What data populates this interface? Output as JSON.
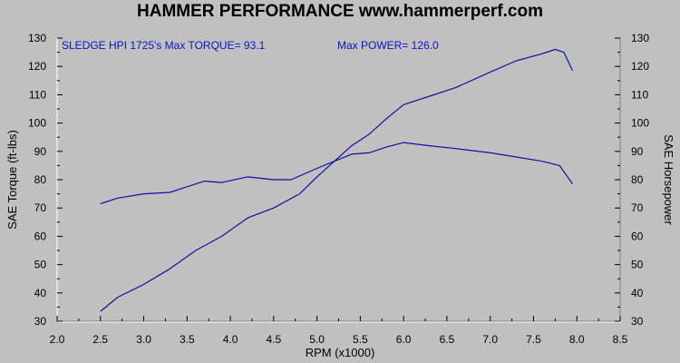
{
  "chart_data": {
    "type": "line",
    "title": "HAMMER PERFORMANCE www.hammerperf.com",
    "xlabel": "RPM (x1000)",
    "ylabel": "SAE Torque (ft-lbs)",
    "y2label": "SAE Horsepower",
    "xlim": [
      2.0,
      8.5
    ],
    "ylim": [
      30,
      130
    ],
    "y2lim": [
      30,
      130
    ],
    "x_ticks": [
      "2.0",
      "2.5",
      "3.0",
      "3.5",
      "4.0",
      "4.5",
      "5.0",
      "5.5",
      "6.0",
      "6.5",
      "7.0",
      "7.5",
      "8.0",
      "8.5"
    ],
    "y_ticks": [
      "30",
      "40",
      "50",
      "60",
      "70",
      "80",
      "90",
      "100",
      "110",
      "120",
      "130"
    ],
    "y2_ticks": [
      "30",
      "40",
      "50",
      "60",
      "70",
      "80",
      "90",
      "100",
      "110",
      "120",
      "130"
    ],
    "grid": false,
    "annotations": [
      "SLEDGE HPI 1725's  Max TORQUE= 93.1",
      "Max POWER= 126.0"
    ],
    "line_color": "#1010a0",
    "series": [
      {
        "x": [
          2.5,
          2.7,
          3.0,
          3.3,
          3.5,
          3.7,
          3.9,
          4.2,
          4.5,
          4.7,
          5.0,
          5.2,
          5.4,
          5.6,
          5.8,
          6.0,
          6.3,
          6.6,
          7.0,
          7.3,
          7.6,
          7.8,
          7.95
        ],
        "values": [
          71.5,
          73.5,
          75.0,
          75.5,
          77.5,
          79.5,
          79.0,
          81.0,
          80.0,
          80.0,
          84.0,
          86.5,
          89.0,
          89.5,
          91.5,
          93.1,
          92.0,
          91.0,
          89.5,
          88.0,
          86.5,
          85.0,
          78.5
        ]
      },
      {
        "x": [
          2.5,
          2.7,
          3.0,
          3.3,
          3.6,
          3.9,
          4.2,
          4.5,
          4.8,
          5.0,
          5.2,
          5.4,
          5.6,
          5.8,
          6.0,
          6.3,
          6.6,
          7.0,
          7.3,
          7.6,
          7.75,
          7.85,
          7.95
        ],
        "values": [
          33.5,
          38.5,
          43.0,
          48.5,
          55.0,
          60.0,
          66.5,
          70.0,
          75.0,
          81.0,
          86.5,
          92.0,
          96.0,
          101.5,
          106.5,
          109.5,
          112.5,
          118.0,
          122.0,
          124.5,
          126.0,
          125.0,
          118.5
        ]
      }
    ]
  }
}
